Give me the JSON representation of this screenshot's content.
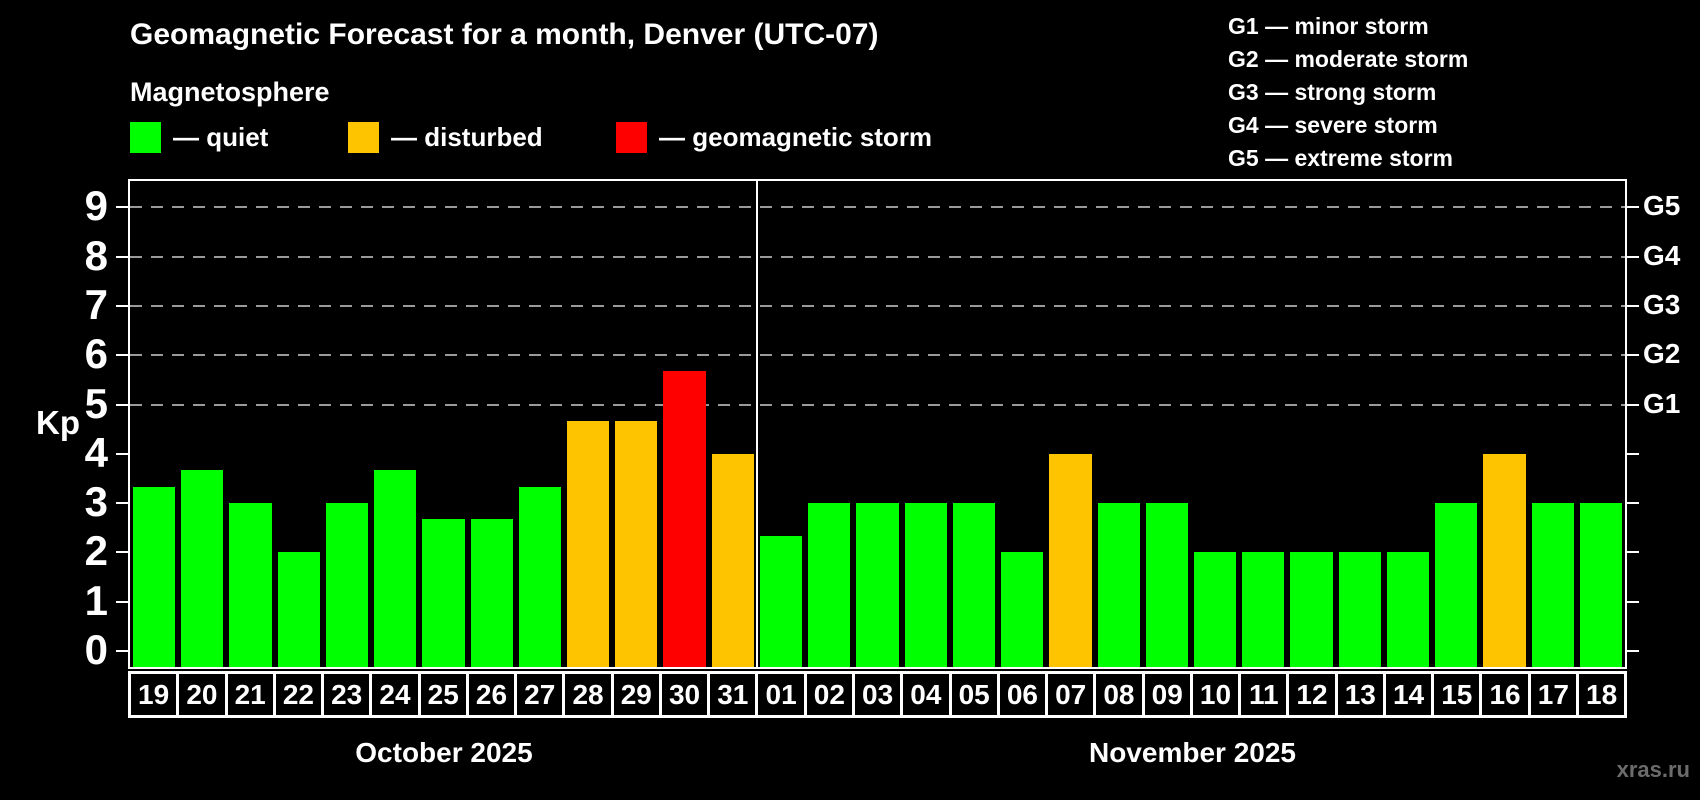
{
  "title": "Geomagnetic Forecast for a month, Denver (UTC-07)",
  "subtitle": "Magnetosphere",
  "legend": [
    {
      "key": "quiet",
      "label": "— quiet"
    },
    {
      "key": "disturbed",
      "label": "— disturbed"
    },
    {
      "key": "storm",
      "label": "— geomagnetic storm"
    }
  ],
  "status_colors": {
    "quiet": "#00ff00",
    "disturbed": "#ffc400",
    "storm": "#ff0000"
  },
  "g_legend": [
    {
      "label": "G1 — minor storm"
    },
    {
      "label": "G2 — moderate storm"
    },
    {
      "label": "G3 — strong storm"
    },
    {
      "label": "G4 — severe storm"
    },
    {
      "label": "G5 — extreme storm"
    }
  ],
  "y_axis": {
    "label": "Kp",
    "ticks": [
      "0",
      "1",
      "2",
      "3",
      "4",
      "5",
      "6",
      "7",
      "8",
      "9"
    ]
  },
  "right_axis": {
    "labels": [
      {
        "text": "G1",
        "kp": 5
      },
      {
        "text": "G2",
        "kp": 6
      },
      {
        "text": "G3",
        "kp": 7
      },
      {
        "text": "G4",
        "kp": 8
      },
      {
        "text": "G5",
        "kp": 9
      }
    ]
  },
  "watermark": "xras.ru",
  "chart_data": {
    "type": "bar",
    "ylabel": "Kp",
    "ylim": [
      0,
      9
    ],
    "grid": "dashed horizontal at Kp 5-9",
    "legend_position": "top-left",
    "months": [
      {
        "label": "October 2025",
        "days": [
          "19",
          "20",
          "21",
          "22",
          "23",
          "24",
          "25",
          "26",
          "27",
          "28",
          "29",
          "30",
          "31"
        ],
        "values": [
          3.33,
          3.67,
          3.0,
          2.0,
          3.0,
          3.67,
          2.67,
          2.67,
          3.33,
          4.67,
          4.67,
          5.67,
          4.0
        ],
        "statuses": [
          "quiet",
          "quiet",
          "quiet",
          "quiet",
          "quiet",
          "quiet",
          "quiet",
          "quiet",
          "quiet",
          "disturbed",
          "disturbed",
          "storm",
          "disturbed"
        ]
      },
      {
        "label": "November 2025",
        "days": [
          "01",
          "02",
          "03",
          "04",
          "05",
          "06",
          "07",
          "08",
          "09",
          "10",
          "11",
          "12",
          "13",
          "14",
          "15",
          "16",
          "17",
          "18"
        ],
        "values": [
          2.33,
          3.0,
          3.0,
          3.0,
          3.0,
          2.0,
          4.0,
          3.0,
          3.0,
          2.0,
          2.0,
          2.0,
          2.0,
          2.0,
          3.0,
          4.0,
          3.0,
          3.0
        ],
        "statuses": [
          "quiet",
          "quiet",
          "quiet",
          "quiet",
          "quiet",
          "quiet",
          "disturbed",
          "quiet",
          "quiet",
          "quiet",
          "quiet",
          "quiet",
          "quiet",
          "quiet",
          "quiet",
          "disturbed",
          "quiet",
          "quiet"
        ]
      }
    ]
  }
}
